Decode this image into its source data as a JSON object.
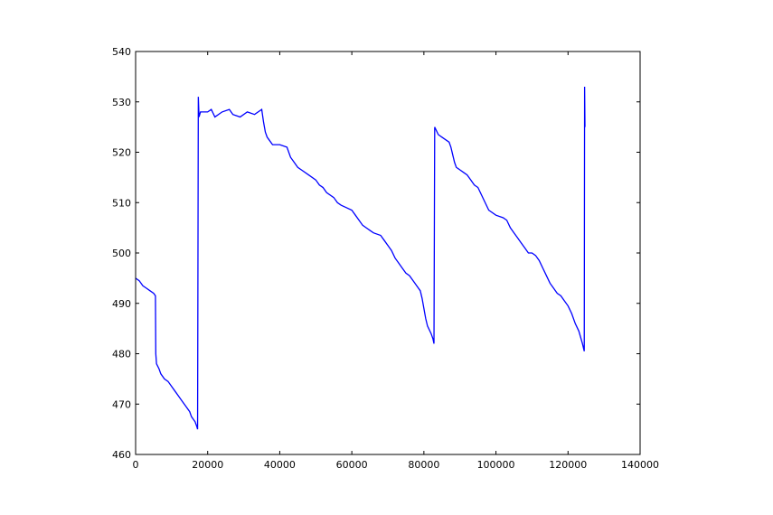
{
  "chart_data": {
    "type": "line",
    "title": "",
    "xlabel": "",
    "ylabel": "",
    "xlim": [
      0,
      140000
    ],
    "ylim": [
      460,
      540
    ],
    "x_ticks": [
      0,
      20000,
      40000,
      60000,
      80000,
      100000,
      120000,
      140000
    ],
    "y_ticks": [
      460,
      470,
      480,
      490,
      500,
      510,
      520,
      530,
      540
    ],
    "x_tick_labels": [
      "0",
      "20000",
      "40000",
      "60000",
      "80000",
      "100000",
      "120000",
      "140000"
    ],
    "y_tick_labels": [
      "460",
      "470",
      "480",
      "490",
      "500",
      "510",
      "520",
      "530",
      "540"
    ],
    "grid": false,
    "legend": "none",
    "series": [
      {
        "color": "#0000ff",
        "points": [
          [
            0,
            495
          ],
          [
            1000,
            494.5
          ],
          [
            2000,
            493.5
          ],
          [
            3000,
            493
          ],
          [
            4000,
            492.5
          ],
          [
            5000,
            492
          ],
          [
            5500,
            491.5
          ],
          [
            5600,
            480
          ],
          [
            5800,
            478
          ],
          [
            6500,
            477
          ],
          [
            7000,
            476
          ],
          [
            8000,
            475
          ],
          [
            9000,
            474.5
          ],
          [
            10000,
            473.5
          ],
          [
            11000,
            472.5
          ],
          [
            12000,
            471.5
          ],
          [
            13000,
            470.5
          ],
          [
            14000,
            469.5
          ],
          [
            15000,
            468.5
          ],
          [
            15500,
            467.5
          ],
          [
            16500,
            466.5
          ],
          [
            17000,
            465.5
          ],
          [
            17200,
            465
          ],
          [
            17400,
            531
          ],
          [
            17600,
            527
          ],
          [
            18000,
            528
          ],
          [
            20000,
            528
          ],
          [
            21000,
            528.5
          ],
          [
            22000,
            527
          ],
          [
            24000,
            528
          ],
          [
            26000,
            528.5
          ],
          [
            27000,
            527.5
          ],
          [
            29000,
            527
          ],
          [
            31000,
            528
          ],
          [
            33000,
            527.5
          ],
          [
            35000,
            528.5
          ],
          [
            35500,
            526
          ],
          [
            36000,
            524
          ],
          [
            36500,
            523
          ],
          [
            37000,
            522.5
          ],
          [
            38000,
            521.5
          ],
          [
            40000,
            521.5
          ],
          [
            42000,
            521
          ],
          [
            43000,
            519
          ],
          [
            44000,
            518
          ],
          [
            45000,
            517
          ],
          [
            46000,
            516.5
          ],
          [
            48000,
            515.5
          ],
          [
            50000,
            514.5
          ],
          [
            51000,
            513.5
          ],
          [
            52000,
            513
          ],
          [
            53000,
            512
          ],
          [
            55000,
            511
          ],
          [
            56000,
            510
          ],
          [
            57000,
            509.5
          ],
          [
            60000,
            508.5
          ],
          [
            61000,
            507.5
          ],
          [
            62000,
            506.5
          ],
          [
            63000,
            505.5
          ],
          [
            64000,
            505
          ],
          [
            65000,
            504.5
          ],
          [
            66000,
            504
          ],
          [
            68000,
            503.5
          ],
          [
            69000,
            502.5
          ],
          [
            70000,
            501.5
          ],
          [
            71000,
            500.5
          ],
          [
            72000,
            499
          ],
          [
            73000,
            498
          ],
          [
            74000,
            497
          ],
          [
            75000,
            496
          ],
          [
            76000,
            495.5
          ],
          [
            77000,
            494.5
          ],
          [
            78000,
            493.5
          ],
          [
            79000,
            492.5
          ],
          [
            79500,
            491
          ],
          [
            80000,
            489
          ],
          [
            80500,
            487
          ],
          [
            81000,
            485.5
          ],
          [
            82000,
            484
          ],
          [
            82500,
            483
          ],
          [
            82800,
            482
          ],
          [
            83000,
            525
          ],
          [
            84000,
            523.5
          ],
          [
            85000,
            523
          ],
          [
            86000,
            522.5
          ],
          [
            87000,
            522
          ],
          [
            87500,
            521
          ],
          [
            88000,
            519.5
          ],
          [
            88500,
            518
          ],
          [
            89000,
            517
          ],
          [
            90000,
            516.5
          ],
          [
            91000,
            516
          ],
          [
            92000,
            515.5
          ],
          [
            93000,
            514.5
          ],
          [
            94000,
            513.5
          ],
          [
            95000,
            513
          ],
          [
            96000,
            511.5
          ],
          [
            97000,
            510
          ],
          [
            98000,
            508.5
          ],
          [
            100000,
            507.5
          ],
          [
            102000,
            507
          ],
          [
            103000,
            506.5
          ],
          [
            104000,
            505
          ],
          [
            105000,
            504
          ],
          [
            106000,
            503
          ],
          [
            107000,
            502
          ],
          [
            108000,
            501
          ],
          [
            109000,
            500
          ],
          [
            110000,
            500
          ],
          [
            111000,
            499.5
          ],
          [
            112000,
            498.5
          ],
          [
            113000,
            497
          ],
          [
            114000,
            495.5
          ],
          [
            115000,
            494
          ],
          [
            116000,
            493
          ],
          [
            117000,
            492
          ],
          [
            118000,
            491.5
          ],
          [
            119000,
            490.5
          ],
          [
            120000,
            489.5
          ],
          [
            121000,
            488
          ],
          [
            122000,
            486
          ],
          [
            123000,
            484.5
          ],
          [
            124000,
            482
          ],
          [
            124500,
            480.5
          ],
          [
            124600,
            533
          ],
          [
            124700,
            525
          ]
        ]
      }
    ]
  }
}
